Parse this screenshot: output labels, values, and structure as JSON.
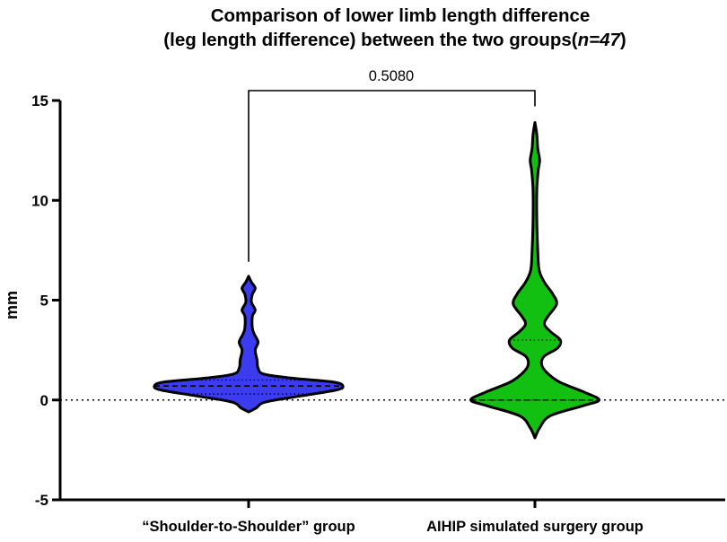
{
  "chart_data": {
    "type": "violin",
    "title_line1": "Comparison of lower limb length difference",
    "title_line2_prefix": "(leg length difference) between the two groups(",
    "title_line2_italic": "n=47",
    "title_line2_suffix": ")",
    "ylabel": "mm",
    "xlabel": "",
    "ylim": [
      -5,
      15
    ],
    "yticks": [
      -5,
      0,
      5,
      10,
      15
    ],
    "ytick_labels": [
      "-5",
      "0",
      "5",
      "10",
      "15"
    ],
    "reference_line_y": 0,
    "categories": [
      "“Shoulder-to-Shoulder” group",
      "AIHIP simulated surgery group"
    ],
    "groups": [
      {
        "category": "“Shoulder-to-Shoulder” group",
        "color": "#3b3bf0",
        "median": 0.7,
        "quartiles": [
          0.3,
          1.0
        ],
        "min": -0.6,
        "max": 6.2,
        "density_profile": [
          [
            -0.6,
            0.0
          ],
          [
            -0.4,
            0.08
          ],
          [
            -0.1,
            0.18
          ],
          [
            0.2,
            0.55
          ],
          [
            0.5,
            0.93
          ],
          [
            0.7,
            1.0
          ],
          [
            0.9,
            0.9
          ],
          [
            1.1,
            0.45
          ],
          [
            1.3,
            0.16
          ],
          [
            1.6,
            0.1
          ],
          [
            2.0,
            0.09
          ],
          [
            2.5,
            0.07
          ],
          [
            2.9,
            0.1
          ],
          [
            3.3,
            0.06
          ],
          [
            3.6,
            0.04
          ],
          [
            4.2,
            0.04
          ],
          [
            4.5,
            0.07
          ],
          [
            4.9,
            0.03
          ],
          [
            5.3,
            0.04
          ],
          [
            5.6,
            0.07
          ],
          [
            5.9,
            0.03
          ],
          [
            6.2,
            0.0
          ]
        ]
      },
      {
        "category": "AIHIP simulated surgery group",
        "color": "#11c011",
        "median": 0.0,
        "quartiles": [
          0.0,
          3.0
        ],
        "min": -1.9,
        "max": 13.9,
        "density_profile": [
          [
            -1.9,
            0.0
          ],
          [
            -1.4,
            0.05
          ],
          [
            -0.8,
            0.16
          ],
          [
            -0.3,
            0.5
          ],
          [
            0.0,
            0.68
          ],
          [
            0.4,
            0.52
          ],
          [
            0.9,
            0.26
          ],
          [
            1.4,
            0.12
          ],
          [
            1.8,
            0.07
          ],
          [
            2.2,
            0.1
          ],
          [
            2.6,
            0.24
          ],
          [
            3.0,
            0.27
          ],
          [
            3.4,
            0.17
          ],
          [
            3.8,
            0.1
          ],
          [
            4.2,
            0.14
          ],
          [
            4.8,
            0.23
          ],
          [
            5.3,
            0.19
          ],
          [
            5.9,
            0.1
          ],
          [
            6.5,
            0.045
          ],
          [
            7.5,
            0.03
          ],
          [
            9.0,
            0.02
          ],
          [
            10.5,
            0.02
          ],
          [
            11.5,
            0.035
          ],
          [
            12.0,
            0.05
          ],
          [
            12.6,
            0.03
          ],
          [
            13.3,
            0.02
          ],
          [
            13.9,
            0.0
          ]
        ]
      }
    ],
    "comparison": {
      "between": [
        0,
        1
      ],
      "p_value_label": "0.5080"
    }
  }
}
